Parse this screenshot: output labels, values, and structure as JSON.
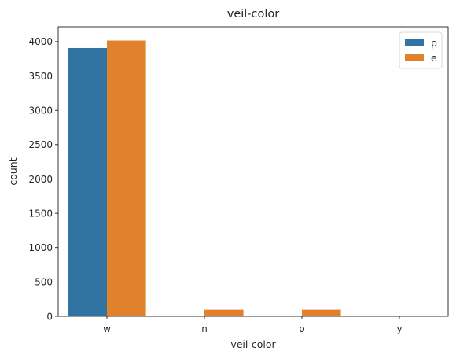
{
  "chart_data": {
    "type": "bar",
    "title": "veil-color",
    "xlabel": "veil-color",
    "ylabel": "count",
    "categories": [
      "w",
      "n",
      "o",
      "y"
    ],
    "series": [
      {
        "name": "p",
        "color": "#3274a1",
        "values": [
          3908,
          0,
          0,
          8
        ]
      },
      {
        "name": "e",
        "color": "#e1812c",
        "values": [
          4016,
          96,
          96,
          0
        ]
      }
    ],
    "yticks": [
      0,
      500,
      1000,
      1500,
      2000,
      2500,
      3000,
      3500,
      4000
    ],
    "ylim": [
      0,
      4217
    ],
    "grid": false,
    "legend_position": "top-right"
  }
}
